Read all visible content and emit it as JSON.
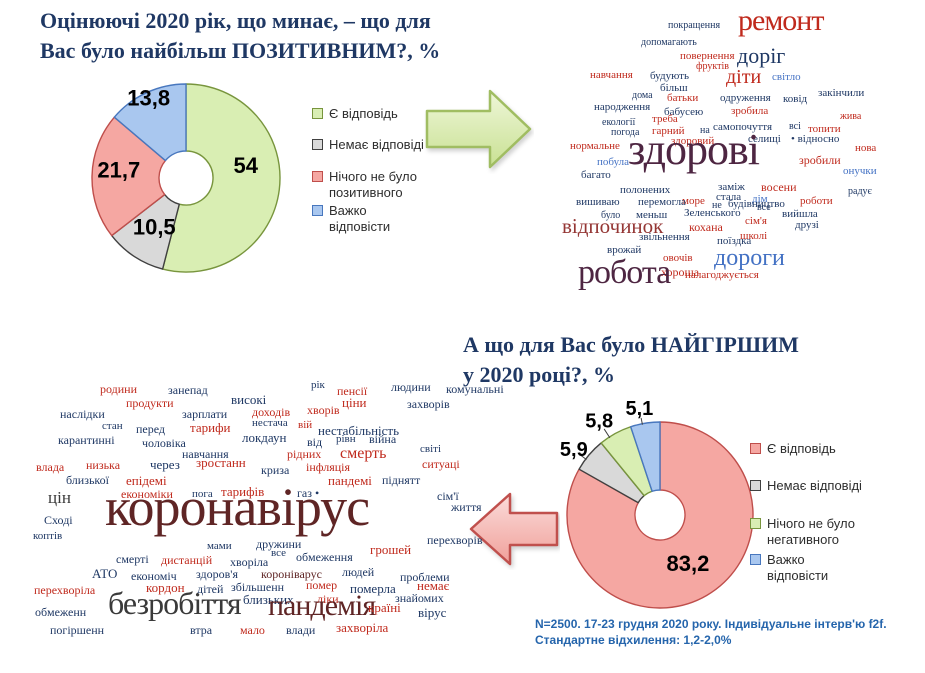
{
  "slide": {
    "title_positive": {
      "line1": "Оцінюючі 2020 рік, що минає, – що для",
      "line2": "Вас було найбільш ПОЗИТИВНИМ?, %"
    },
    "title_negative": {
      "line1": "А що для Вас було НАЙГІРШИМ",
      "line2": "у 2020 році?,  %"
    },
    "footnote": {
      "line1": "N=2500. 17-23 грудня 2020 року. Індивідуальне інтерв'ю f2f.",
      "line2": "Стандартне відхилення: 1,2-2,0%"
    },
    "title_color": "#1f3864",
    "footnote_color": "#2565ac"
  },
  "palette": {
    "red": "#c02a1d",
    "navy": "#1f3864",
    "blue": "#4472c4",
    "plum": "#4e2642",
    "maroon": "#5f2525",
    "darkred": "#943634",
    "black": "#3a3a3a"
  },
  "chart_data": [
    {
      "type": "pie",
      "title": "Оцінюючі 2020 рік, що минає, – що для Вас було найбільш ПОЗИТИВНИМ?, %",
      "categories": [
        "Є відповідь",
        "Немає відповіді",
        "Нічого не було позитивного",
        "Важко відповісти"
      ],
      "values": [
        54,
        10.5,
        21.7,
        13.8
      ],
      "labels": [
        "54",
        "10,5",
        "21,7",
        "13,8"
      ],
      "fills": [
        "#d9eeb3",
        "#d9d9d9",
        "#f5a7a2",
        "#a9c7ef"
      ],
      "strokes": [
        "#78953d",
        "#404040",
        "#bf4e4b",
        "#4877be"
      ],
      "label_r": [
        0.65,
        0.62,
        0.72,
        0.94
      ],
      "label_a": [
        78,
        213,
        277,
        335
      ],
      "donut": true,
      "legend_position": "right",
      "start_angle": 0
    },
    {
      "type": "wordcloud",
      "title": "Позитивне у 2020 (відкриті відповіді)",
      "words": [
        [
          "покращення",
          668,
          21,
          10,
          "navy"
        ],
        [
          "ремонт",
          738,
          6,
          30,
          "red"
        ],
        [
          "допомагають",
          641,
          38,
          10,
          "navy"
        ],
        [
          "повернення",
          680,
          51,
          11,
          "red"
        ],
        [
          "доріг",
          737,
          45,
          22,
          "navy"
        ],
        [
          "навчання",
          590,
          70,
          11,
          "red"
        ],
        [
          "будують",
          650,
          71,
          11,
          "navy"
        ],
        [
          "фруктів",
          696,
          62,
          10,
          "red"
        ],
        [
          "більш",
          660,
          83,
          11,
          "navy"
        ],
        [
          "діти",
          726,
          67,
          20,
          "red"
        ],
        [
          "світло",
          772,
          72,
          11,
          "blue"
        ],
        [
          "дома",
          632,
          91,
          10,
          "navy"
        ],
        [
          "батьки",
          667,
          93,
          11,
          "red"
        ],
        [
          "одруження",
          720,
          93,
          11,
          "navy"
        ],
        [
          "ковід",
          783,
          94,
          11,
          "navy"
        ],
        [
          "закінчили",
          818,
          88,
          11,
          "navy"
        ],
        [
          "народження",
          594,
          102,
          11,
          "navy"
        ],
        [
          "бабусею",
          664,
          107,
          11,
          "navy"
        ],
        [
          "зробила",
          731,
          106,
          11,
          "red"
        ],
        [
          "екології",
          602,
          118,
          10,
          "navy"
        ],
        [
          "треба",
          652,
          114,
          11,
          "red"
        ],
        [
          "жива",
          840,
          112,
          10,
          "red"
        ],
        [
          "погода",
          611,
          128,
          10,
          "navy"
        ],
        [
          "гарний",
          652,
          126,
          11,
          "red"
        ],
        [
          "на",
          700,
          126,
          10,
          "navy"
        ],
        [
          "самопочуття",
          713,
          122,
          11,
          "navy"
        ],
        [
          "всі",
          789,
          122,
          10,
          "navy"
        ],
        [
          "топити",
          808,
          124,
          11,
          "red"
        ],
        [
          "здоровий",
          671,
          136,
          11,
          "red"
        ],
        [
          "селищі",
          748,
          134,
          11,
          "navy"
        ],
        [
          "• відносно",
          791,
          134,
          11,
          "navy"
        ],
        [
          "нормальне",
          570,
          141,
          11,
          "red"
        ],
        [
          "нова",
          855,
          143,
          11,
          "red"
        ],
        [
          "побула",
          597,
          157,
          11,
          "blue"
        ],
        [
          "здорові",
          628,
          128,
          44,
          "plum"
        ],
        [
          "зробили",
          799,
          154,
          12,
          "red"
        ],
        [
          "багато",
          581,
          170,
          11,
          "navy"
        ],
        [
          "онучки",
          843,
          166,
          11,
          "blue"
        ],
        [
          "полонених",
          620,
          185,
          11,
          "navy"
        ],
        [
          "заміж",
          718,
          182,
          11,
          "navy"
        ],
        [
          "восени",
          761,
          181,
          12,
          "red"
        ],
        [
          "радує",
          848,
          187,
          10,
          "navy"
        ],
        [
          "море",
          682,
          196,
          11,
          "red"
        ],
        [
          "стала",
          716,
          192,
          11,
          "navy"
        ],
        [
          "дім",
          752,
          194,
          11,
          "blue"
        ],
        [
          "вишиваю",
          576,
          197,
          11,
          "navy"
        ],
        [
          "перемогла",
          638,
          197,
          11,
          "navy"
        ],
        [
          "не",
          712,
          201,
          10,
          "navy"
        ],
        [
          "будівництво",
          728,
          199,
          11,
          "navy"
        ],
        [
          "роботи",
          800,
          196,
          11,
          "red"
        ],
        [
          "було",
          601,
          211,
          10,
          "navy"
        ],
        [
          "меньш",
          636,
          210,
          11,
          "navy"
        ],
        [
          "Зеленського",
          684,
          208,
          11,
          "navy"
        ],
        [
          "все",
          757,
          203,
          10,
          "navy"
        ],
        [
          "вийшла",
          782,
          209,
          11,
          "navy"
        ],
        [
          "відпочинок",
          562,
          216,
          21,
          "darkred"
        ],
        [
          "кохана",
          689,
          221,
          12,
          "red"
        ],
        [
          "сім'я",
          745,
          216,
          11,
          "red"
        ],
        [
          "друзі",
          795,
          220,
          11,
          "navy"
        ],
        [
          "звільнення",
          639,
          232,
          11,
          "navy"
        ],
        [
          "школі",
          740,
          231,
          11,
          "red"
        ],
        [
          "врожай",
          607,
          245,
          11,
          "navy"
        ],
        [
          "поїздка",
          717,
          236,
          11,
          "navy"
        ],
        [
          "овочів",
          663,
          253,
          11,
          "red"
        ],
        [
          "хороша",
          661,
          266,
          12,
          "red"
        ],
        [
          "дороги",
          714,
          246,
          24,
          "blue"
        ],
        [
          "робота",
          578,
          256,
          34,
          "plum"
        ],
        [
          "налагоджується",
          685,
          270,
          11,
          "red"
        ]
      ]
    },
    {
      "type": "pie",
      "title": "А що для Вас було НАЙГІРШИМ у 2020 році?, %",
      "categories": [
        "Є відповідь",
        "Немає відповіді",
        "Нічого не було негативного",
        "Важко відповісти"
      ],
      "values": [
        83.2,
        5.9,
        5.8,
        5.1
      ],
      "labels": [
        "83,2",
        "5,9",
        "5,8",
        "5,1"
      ],
      "fills": [
        "#f5a7a2",
        "#d9d9d9",
        "#d9eeb3",
        "#a9c7ef"
      ],
      "strokes": [
        "#bf4e4b",
        "#404040",
        "#78953d",
        "#4877be"
      ],
      "label_r": [
        0.6,
        1.16,
        1.2,
        1.16
      ],
      "label_a": [
        150,
        307,
        327,
        349
      ],
      "donut": true,
      "legend_position": "right",
      "start_angle": 0
    },
    {
      "type": "wordcloud",
      "title": "Найгірше у 2020 (відкриті відповіді)",
      "words": [
        [
          "родини",
          100,
          383,
          12,
          "red"
        ],
        [
          "занепад",
          168,
          384,
          12,
          "navy"
        ],
        [
          "рік",
          311,
          380,
          11,
          "navy"
        ],
        [
          "пенсії",
          337,
          385,
          12,
          "red"
        ],
        [
          "людини",
          391,
          381,
          12,
          "navy"
        ],
        [
          "комунальні",
          446,
          383,
          12,
          "navy"
        ],
        [
          "продукти",
          126,
          397,
          12,
          "red"
        ],
        [
          "високі",
          231,
          393,
          13,
          "navy"
        ],
        [
          "ціни",
          342,
          396,
          13,
          "red"
        ],
        [
          "захворів",
          407,
          398,
          12,
          "navy"
        ],
        [
          "наслідки",
          60,
          408,
          12,
          "navy"
        ],
        [
          "зарплати",
          182,
          408,
          12,
          "navy"
        ],
        [
          "доходів",
          252,
          406,
          12,
          "red"
        ],
        [
          "хворів",
          307,
          404,
          12,
          "red"
        ],
        [
          "стан",
          102,
          421,
          11,
          "navy"
        ],
        [
          "перед",
          136,
          423,
          12,
          "navy"
        ],
        [
          "тарифи",
          190,
          421,
          13,
          "red"
        ],
        [
          "нестача",
          252,
          418,
          11,
          "navy"
        ],
        [
          "вій",
          298,
          420,
          11,
          "red"
        ],
        [
          "нестабільність",
          318,
          424,
          13,
          "navy"
        ],
        [
          "карантинні",
          58,
          434,
          12,
          "navy"
        ],
        [
          "чоловіка",
          142,
          437,
          12,
          "navy"
        ],
        [
          "локдаун",
          242,
          431,
          13,
          "navy"
        ],
        [
          "від",
          307,
          436,
          12,
          "navy"
        ],
        [
          "рівн",
          336,
          434,
          11,
          "navy"
        ],
        [
          "війна",
          369,
          433,
          12,
          "navy"
        ],
        [
          "навчання",
          182,
          448,
          12,
          "navy"
        ],
        [
          "рідних",
          287,
          448,
          12,
          "red"
        ],
        [
          "смерть",
          340,
          446,
          16,
          "red"
        ],
        [
          "світі",
          420,
          444,
          11,
          "navy"
        ],
        [
          "влада",
          36,
          461,
          12,
          "red"
        ],
        [
          "низька",
          86,
          459,
          12,
          "red"
        ],
        [
          "через",
          150,
          458,
          13,
          "navy"
        ],
        [
          "зростанн",
          196,
          456,
          13,
          "red"
        ],
        [
          "криза",
          261,
          464,
          12,
          "navy"
        ],
        [
          "інфляція",
          306,
          461,
          12,
          "red"
        ],
        [
          "ситуаці",
          422,
          458,
          12,
          "red"
        ],
        [
          "близької",
          66,
          474,
          12,
          "navy"
        ],
        [
          "епідемі",
          126,
          474,
          13,
          "red"
        ],
        [
          "пандемі",
          328,
          474,
          13,
          "red"
        ],
        [
          "піднятт",
          382,
          474,
          12,
          "navy"
        ],
        [
          "економіки",
          121,
          488,
          12,
          "red"
        ],
        [
          "пога",
          192,
          489,
          11,
          "navy"
        ],
        [
          "тарифів",
          221,
          485,
          13,
          "red"
        ],
        [
          "газ •",
          297,
          487,
          12,
          "navy"
        ],
        [
          "цін",
          48,
          489,
          17,
          "black"
        ],
        [
          "сім'ї",
          437,
          490,
          12,
          "navy"
        ],
        [
          "життя",
          451,
          501,
          12,
          "navy"
        ],
        [
          "Сході",
          44,
          514,
          12,
          "navy"
        ],
        [
          "коронавірус",
          105,
          480,
          54,
          "maroon"
        ],
        [
          "коптів",
          33,
          531,
          11,
          "navy"
        ],
        [
          "мами",
          207,
          541,
          11,
          "navy"
        ],
        [
          "дружини",
          256,
          538,
          12,
          "navy"
        ],
        [
          "перехворів",
          427,
          534,
          12,
          "navy"
        ],
        [
          "смерті",
          116,
          553,
          12,
          "navy"
        ],
        [
          "дистанцій",
          161,
          554,
          12,
          "red"
        ],
        [
          "хворіла",
          230,
          556,
          12,
          "navy"
        ],
        [
          "все",
          271,
          548,
          11,
          "navy"
        ],
        [
          "обмеження",
          296,
          551,
          12,
          "navy"
        ],
        [
          "грошей",
          370,
          543,
          13,
          "red"
        ],
        [
          "АТО",
          92,
          567,
          13,
          "navy"
        ],
        [
          "економіч",
          131,
          570,
          12,
          "navy"
        ],
        [
          "здоров'я",
          196,
          568,
          12,
          "navy"
        ],
        [
          "короніварус",
          261,
          568,
          12,
          "maroon"
        ],
        [
          "людей",
          342,
          566,
          12,
          "navy"
        ],
        [
          "проблеми",
          400,
          571,
          12,
          "navy"
        ],
        [
          "перехворіла",
          34,
          584,
          12,
          "red"
        ],
        [
          "кордон",
          146,
          581,
          13,
          "red"
        ],
        [
          "дітей",
          197,
          583,
          12,
          "navy"
        ],
        [
          "збільшенн",
          231,
          581,
          12,
          "navy"
        ],
        [
          "помер",
          306,
          579,
          12,
          "red"
        ],
        [
          "померла",
          350,
          582,
          13,
          "navy"
        ],
        [
          "немає",
          417,
          579,
          13,
          "red"
        ],
        [
          "близьких",
          243,
          593,
          13,
          "navy"
        ],
        [
          "ліки",
          317,
          593,
          12,
          "red"
        ],
        [
          "знайомих",
          395,
          592,
          12,
          "navy"
        ],
        [
          "обмеженн",
          35,
          606,
          12,
          "navy"
        ],
        [
          "безробіття",
          108,
          587,
          32,
          "black"
        ],
        [
          "пандемія",
          268,
          591,
          30,
          "maroon"
        ],
        [
          "країні",
          368,
          601,
          13,
          "red"
        ],
        [
          "вірус",
          418,
          606,
          13,
          "navy"
        ],
        [
          "погіршенн",
          50,
          624,
          12,
          "navy"
        ],
        [
          "втра",
          190,
          624,
          12,
          "navy"
        ],
        [
          "мало",
          240,
          624,
          12,
          "red"
        ],
        [
          "влади",
          286,
          624,
          12,
          "navy"
        ],
        [
          "захворіла",
          336,
          621,
          13,
          "red"
        ]
      ]
    }
  ]
}
